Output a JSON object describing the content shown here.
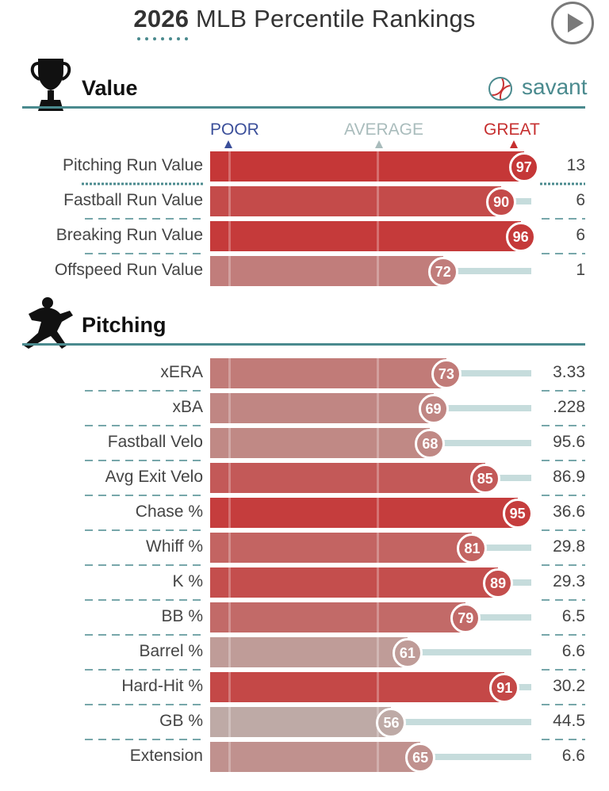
{
  "header": {
    "title_bold": "2026",
    "title_rest": "MLB Percentile Rankings",
    "logo_text": "savant"
  },
  "scale": {
    "poor": "POOR",
    "average": "AVERAGE",
    "great": "GREAT"
  },
  "colors": {
    "great": "#c62f2f",
    "average": "#bdbbb6",
    "poor": "#b6cccc",
    "rule": "#4a8a8e",
    "track": "#c6dcdc"
  },
  "chart_data": [
    {
      "type": "bar",
      "section": "Value",
      "xlim": [
        0,
        100
      ],
      "categories": [
        "Pitching Run Value",
        "Fastball Run Value",
        "Breaking Run Value",
        "Offspeed Run Value"
      ],
      "percentiles": [
        97,
        90,
        96,
        72
      ],
      "values": [
        "13",
        "6",
        "6",
        "1"
      ]
    },
    {
      "type": "bar",
      "section": "Pitching",
      "xlim": [
        0,
        100
      ],
      "categories": [
        "xERA",
        "xBA",
        "Fastball Velo",
        "Avg Exit Velo",
        "Chase %",
        "Whiff %",
        "K %",
        "BB %",
        "Barrel %",
        "Hard-Hit %",
        "GB %",
        "Extension"
      ],
      "percentiles": [
        73,
        69,
        68,
        85,
        95,
        81,
        89,
        79,
        61,
        91,
        56,
        65
      ],
      "values": [
        "3.33",
        ".228",
        "95.6",
        "86.9",
        "36.6",
        "29.8",
        "29.3",
        "6.5",
        "6.6",
        "30.2",
        "44.5",
        "6.6"
      ]
    }
  ]
}
